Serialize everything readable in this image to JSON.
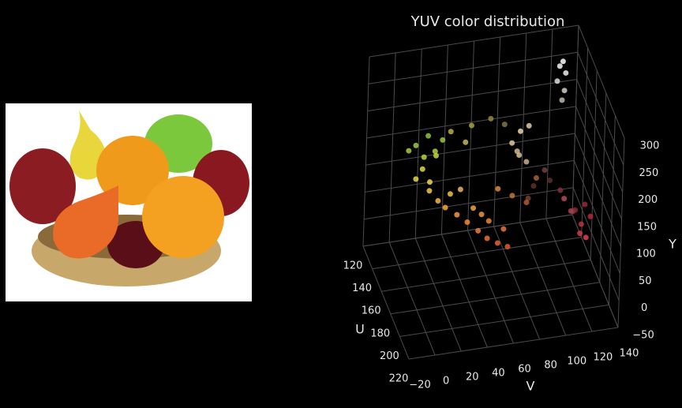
{
  "chart_data": {
    "type": "scatter3d",
    "title": "YUV color distribution",
    "xlabel": "V",
    "ylabel": "U",
    "zlabel": "Y",
    "xlim": [
      -20,
      140
    ],
    "xticks": [
      {
        "value": -20,
        "label": "−20"
      },
      0,
      20,
      40,
      60,
      80,
      100,
      120,
      140
    ],
    "ylim": [
      120,
      220
    ],
    "yticks": [
      120,
      140,
      160,
      180,
      200,
      220
    ],
    "zlim": [
      -50,
      300
    ],
    "zticks": [
      {
        "value": -50,
        "label": "−50"
      },
      0,
      50,
      100,
      150,
      200,
      250,
      300
    ],
    "grid": true,
    "points": {
      "x": [
        15,
        20,
        25,
        18,
        30,
        12,
        10,
        28,
        22,
        35,
        20,
        25,
        30,
        38,
        45,
        52,
        58,
        65,
        72,
        35,
        50,
        60,
        70,
        42,
        55,
        120,
        125,
        130,
        135,
        128,
        118,
        138,
        132,
        128,
        122,
        100,
        110,
        95,
        115,
        90,
        85,
        95,
        92,
        88,
        98,
        126,
        124,
        128,
        122,
        127,
        125,
        40,
        55,
        70,
        50,
        80,
        70,
        80,
        100,
        90
      ],
      "y": [
        128,
        132,
        126,
        135,
        130,
        138,
        127,
        133,
        140,
        129,
        145,
        150,
        152,
        155,
        158,
        162,
        165,
        168,
        170,
        148,
        156,
        162,
        166,
        150,
        160,
        155,
        160,
        165,
        158,
        168,
        152,
        162,
        170,
        157,
        164,
        145,
        140,
        148,
        138,
        140,
        138,
        142,
        136,
        141,
        137,
        128,
        127,
        129,
        128,
        130,
        131,
        132,
        134,
        133,
        136,
        135,
        152,
        155,
        150,
        158
      ],
      "z": [
        140,
        125,
        150,
        110,
        120,
        100,
        130,
        135,
        95,
        145,
        90,
        80,
        70,
        60,
        50,
        40,
        30,
        25,
        20,
        85,
        70,
        55,
        45,
        95,
        65,
        60,
        45,
        30,
        50,
        20,
        70,
        35,
        15,
        40,
        55,
        70,
        85,
        55,
        60,
        120,
        140,
        110,
        155,
        130,
        165,
        255,
        245,
        235,
        220,
        205,
        190,
        165,
        175,
        180,
        150,
        170,
        90,
        80,
        95,
        70
      ],
      "colors": [
        "#9ccc3c",
        "#b5d63a",
        "#8fc23a",
        "#d8dc40",
        "#c6d83e",
        "#e4d848",
        "#a4cc3a",
        "#b0d040",
        "#eed84c",
        "#9cc63e",
        "#f2c848",
        "#f4b840",
        "#f4a83c",
        "#f49a38",
        "#f28c34",
        "#f07c30",
        "#ee7030",
        "#e8642e",
        "#e45a2c",
        "#f2c04a",
        "#f0a43e",
        "#ec8a36",
        "#e8763a",
        "#eab65a",
        "#e89a4a",
        "#b8485a",
        "#a83848",
        "#c03040",
        "#982838",
        "#d03848",
        "#803040",
        "#b82840",
        "#e04050",
        "#8c2a3a",
        "#a04050",
        "#603028",
        "#704038",
        "#7a4030",
        "#583028",
        "#d8c098",
        "#e0c8a0",
        "#c8b088",
        "#e8d4b0",
        "#d0b890",
        "#dccaa8",
        "#ffffff",
        "#f4f4f4",
        "#ececec",
        "#e0dcd8",
        "#d0ccc8",
        "#c0b8b0",
        "#b8b048",
        "#a8a040",
        "#908848",
        "#c8b850",
        "#807848",
        "#d88a40",
        "#c07838",
        "#a06040",
        "#b05a38"
      ]
    }
  }
}
